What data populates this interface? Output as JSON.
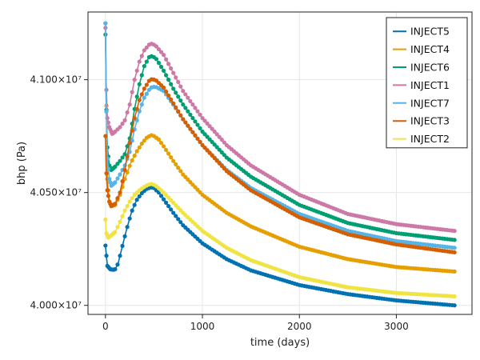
{
  "chart_data": {
    "type": "line",
    "title": "",
    "xlabel": "time (days)",
    "ylabel": "bhp (Pa)",
    "xlim": [
      -180,
      3780
    ],
    "ylim": [
      39960000,
      41300000
    ],
    "x_ticks": [
      0,
      1000,
      2000,
      3000
    ],
    "x_tick_labels": [
      "0",
      "1000",
      "2000",
      "3000"
    ],
    "y_ticks": [
      40000000,
      40500000,
      41000000
    ],
    "y_tick_labels": [
      "4.000×10⁷",
      "4.050×10⁷",
      "4.100×10⁷"
    ],
    "grid": true,
    "legend_position": "top-right",
    "markers": true,
    "x_range": [
      0,
      3600
    ],
    "series": [
      {
        "name": "INJECT5",
        "color": "#0072B2",
        "points": [
          [
            0,
            40265000
          ],
          [
            20,
            40175000
          ],
          [
            50,
            40160000
          ],
          [
            80,
            40158000
          ],
          [
            100,
            40160000
          ],
          [
            130,
            40185000
          ],
          [
            170,
            40255000
          ],
          [
            220,
            40340000
          ],
          [
            270,
            40415000
          ],
          [
            320,
            40465000
          ],
          [
            370,
            40495000
          ],
          [
            420,
            40515000
          ],
          [
            470,
            40523000
          ],
          [
            500,
            40520000
          ],
          [
            550,
            40500000
          ],
          [
            600,
            40470000
          ],
          [
            700,
            40410000
          ],
          [
            800,
            40355000
          ],
          [
            1000,
            40275000
          ],
          [
            1250,
            40205000
          ],
          [
            1500,
            40155000
          ],
          [
            2000,
            40090000
          ],
          [
            2500,
            40050000
          ],
          [
            3000,
            40022000
          ],
          [
            3600,
            40000000
          ]
        ]
      },
      {
        "name": "INJECT4",
        "color": "#E69F00",
        "points": [
          [
            0,
            41250000
          ],
          [
            8,
            40950000
          ],
          [
            20,
            40560000
          ],
          [
            40,
            40460000
          ],
          [
            60,
            40440000
          ],
          [
            100,
            40445000
          ],
          [
            150,
            40490000
          ],
          [
            200,
            40560000
          ],
          [
            260,
            40630000
          ],
          [
            320,
            40680000
          ],
          [
            380,
            40720000
          ],
          [
            430,
            40745000
          ],
          [
            480,
            40755000
          ],
          [
            500,
            40750000
          ],
          [
            550,
            40735000
          ],
          [
            600,
            40705000
          ],
          [
            700,
            40640000
          ],
          [
            800,
            40580000
          ],
          [
            1000,
            40490000
          ],
          [
            1250,
            40410000
          ],
          [
            1500,
            40350000
          ],
          [
            2000,
            40260000
          ],
          [
            2500,
            40205000
          ],
          [
            3000,
            40170000
          ],
          [
            3600,
            40150000
          ]
        ]
      },
      {
        "name": "INJECT6",
        "color": "#009E73",
        "points": [
          [
            0,
            41200000
          ],
          [
            8,
            40900000
          ],
          [
            20,
            40700000
          ],
          [
            40,
            40620000
          ],
          [
            60,
            40600000
          ],
          [
            100,
            40615000
          ],
          [
            150,
            40640000
          ],
          [
            200,
            40670000
          ],
          [
            250,
            40740000
          ],
          [
            300,
            40870000
          ],
          [
            350,
            40980000
          ],
          [
            400,
            41060000
          ],
          [
            450,
            41100000
          ],
          [
            480,
            41105000
          ],
          [
            520,
            41095000
          ],
          [
            600,
            41040000
          ],
          [
            700,
            40960000
          ],
          [
            800,
            40890000
          ],
          [
            1000,
            40770000
          ],
          [
            1250,
            40655000
          ],
          [
            1500,
            40570000
          ],
          [
            2000,
            40445000
          ],
          [
            2500,
            40365000
          ],
          [
            3000,
            40320000
          ],
          [
            3600,
            40290000
          ]
        ]
      },
      {
        "name": "INJECT1",
        "color": "#CC79A7",
        "points": [
          [
            0,
            41230000
          ],
          [
            8,
            40980000
          ],
          [
            20,
            40830000
          ],
          [
            40,
            40790000
          ],
          [
            70,
            40760000
          ],
          [
            100,
            40770000
          ],
          [
            150,
            40790000
          ],
          [
            200,
            40820000
          ],
          [
            250,
            40890000
          ],
          [
            300,
            41000000
          ],
          [
            350,
            41080000
          ],
          [
            400,
            41130000
          ],
          [
            450,
            41155000
          ],
          [
            480,
            41160000
          ],
          [
            520,
            41150000
          ],
          [
            600,
            41110000
          ],
          [
            700,
            41030000
          ],
          [
            800,
            40950000
          ],
          [
            1000,
            40830000
          ],
          [
            1250,
            40710000
          ],
          [
            1500,
            40620000
          ],
          [
            2000,
            40490000
          ],
          [
            2500,
            40405000
          ],
          [
            3000,
            40360000
          ],
          [
            3600,
            40330000
          ]
        ]
      },
      {
        "name": "INJECT7",
        "color": "#56B4E9",
        "points": [
          [
            0,
            41250000
          ],
          [
            8,
            40900000
          ],
          [
            20,
            40650000
          ],
          [
            40,
            40560000
          ],
          [
            60,
            40530000
          ],
          [
            100,
            40545000
          ],
          [
            150,
            40580000
          ],
          [
            200,
            40620000
          ],
          [
            250,
            40680000
          ],
          [
            300,
            40780000
          ],
          [
            350,
            40860000
          ],
          [
            400,
            40920000
          ],
          [
            450,
            40955000
          ],
          [
            480,
            40968000
          ],
          [
            520,
            40968000
          ],
          [
            600,
            40950000
          ],
          [
            700,
            40890000
          ],
          [
            800,
            40825000
          ],
          [
            1000,
            40710000
          ],
          [
            1250,
            40600000
          ],
          [
            1500,
            40520000
          ],
          [
            2000,
            40405000
          ],
          [
            2500,
            40330000
          ],
          [
            3000,
            40285000
          ],
          [
            3600,
            40255000
          ]
        ]
      },
      {
        "name": "INJECT3",
        "color": "#D55E00",
        "points": [
          [
            0,
            40750000
          ],
          [
            8,
            40600000
          ],
          [
            20,
            40510000
          ],
          [
            40,
            40460000
          ],
          [
            60,
            40440000
          ],
          [
            100,
            40450000
          ],
          [
            150,
            40500000
          ],
          [
            200,
            40600000
          ],
          [
            250,
            40720000
          ],
          [
            300,
            40830000
          ],
          [
            350,
            40910000
          ],
          [
            400,
            40960000
          ],
          [
            450,
            40995000
          ],
          [
            480,
            41003000
          ],
          [
            520,
            40998000
          ],
          [
            600,
            40965000
          ],
          [
            700,
            40895000
          ],
          [
            800,
            40825000
          ],
          [
            1000,
            40710000
          ],
          [
            1250,
            40595000
          ],
          [
            1500,
            40510000
          ],
          [
            2000,
            40390000
          ],
          [
            2500,
            40315000
          ],
          [
            3000,
            40270000
          ],
          [
            3600,
            40235000
          ]
        ]
      },
      {
        "name": "INJECT2",
        "color": "#F0E442",
        "points": [
          [
            0,
            40380000
          ],
          [
            10,
            40320000
          ],
          [
            30,
            40300000
          ],
          [
            60,
            40310000
          ],
          [
            100,
            40325000
          ],
          [
            150,
            40370000
          ],
          [
            200,
            40420000
          ],
          [
            250,
            40460000
          ],
          [
            300,
            40490000
          ],
          [
            350,
            40510000
          ],
          [
            400,
            40525000
          ],
          [
            440,
            40535000
          ],
          [
            480,
            40538000
          ],
          [
            520,
            40530000
          ],
          [
            600,
            40500000
          ],
          [
            700,
            40455000
          ],
          [
            800,
            40410000
          ],
          [
            1000,
            40330000
          ],
          [
            1250,
            40255000
          ],
          [
            1500,
            40200000
          ],
          [
            2000,
            40125000
          ],
          [
            2500,
            40080000
          ],
          [
            3000,
            40055000
          ],
          [
            3600,
            40040000
          ]
        ]
      }
    ]
  }
}
